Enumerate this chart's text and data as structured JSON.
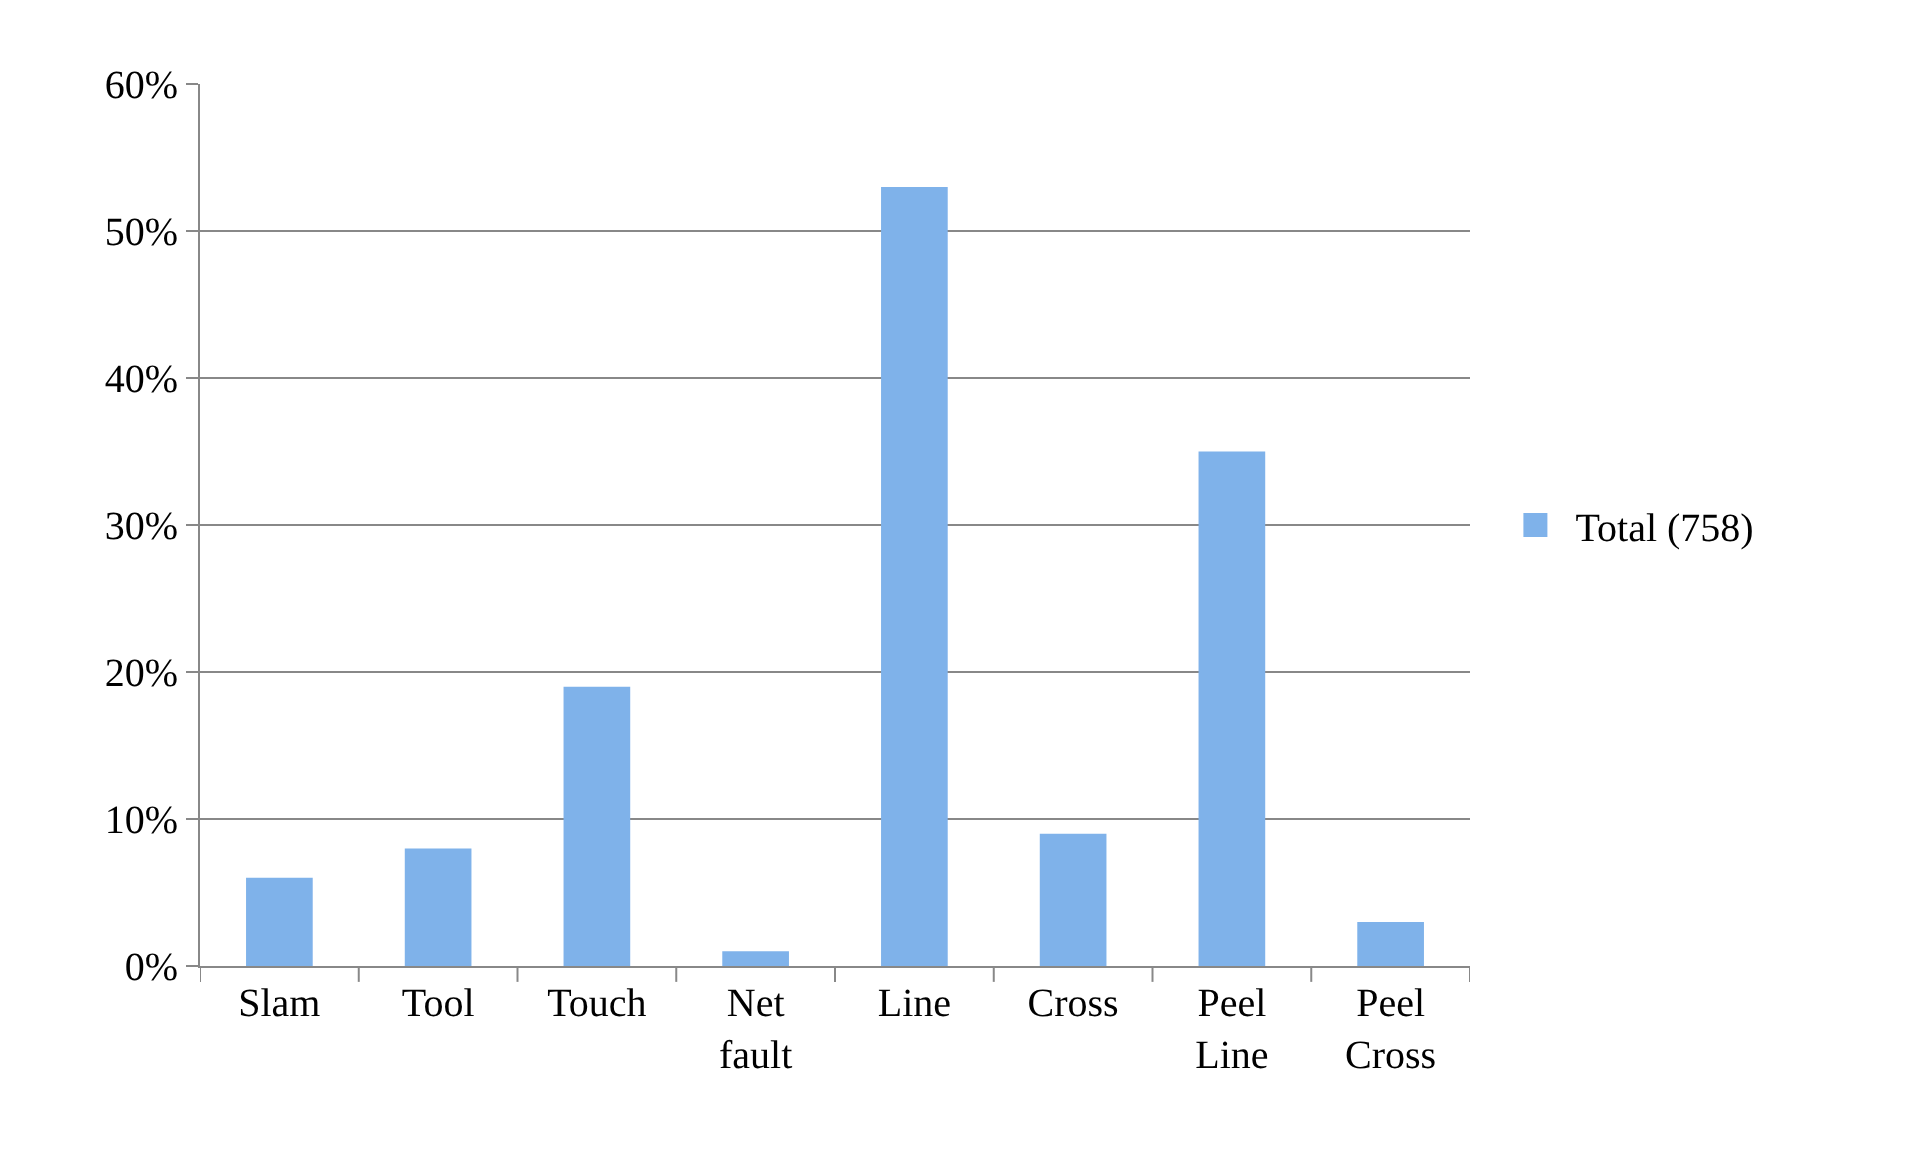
{
  "chart_data": {
    "type": "bar",
    "categories": [
      "Slam",
      "Tool",
      "Touch",
      "Net fault",
      "Line",
      "Cross",
      "Peel Line",
      "Peel Cross"
    ],
    "series": [
      {
        "name": "Total (758)",
        "color": "#7fb2ea",
        "values": [
          6,
          8,
          19,
          1,
          53,
          9,
          35,
          3
        ]
      }
    ],
    "ylim": [
      0,
      60
    ],
    "yticks": [
      {
        "value": 0,
        "label": "0%"
      },
      {
        "value": 10,
        "label": "10%"
      },
      {
        "value": 20,
        "label": "20%"
      },
      {
        "value": 30,
        "label": "30%"
      },
      {
        "value": 40,
        "label": "40%"
      },
      {
        "value": 50,
        "label": "50%"
      },
      {
        "value": 60,
        "label": "60%"
      }
    ],
    "grid": "y",
    "legend": "right"
  }
}
